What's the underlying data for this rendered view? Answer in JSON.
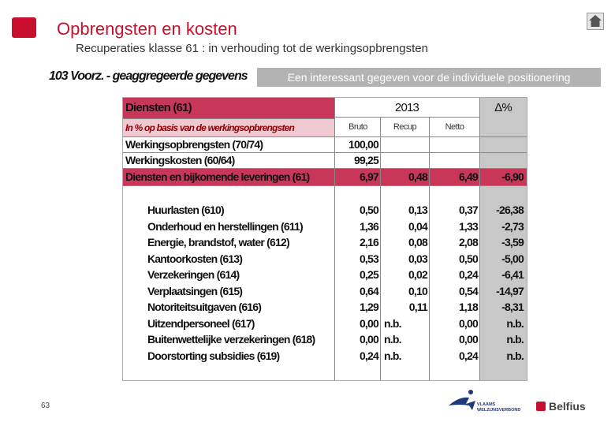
{
  "header": {
    "title": "Opbrengsten en kosten",
    "subtitle": "Recuperaties klasse 61 : in verhouding tot de werkingsopbrengsten"
  },
  "section_label": "103 Voorz. - geaggregeerde gegevens",
  "banner": "Een interessant gegeven voor de individuele positionering",
  "table": {
    "title": "Diensten (61)",
    "year": "2013",
    "delta_header": "Δ%",
    "subheader": "In % op basis van de werkingsopbrengsten",
    "columns": [
      "Bruto",
      "Recup",
      "Netto"
    ],
    "top_rows": [
      {
        "label": "Werkingsopbrengsten (70/74)",
        "bruto": "100,00",
        "recup": "",
        "netto": "",
        "delta": ""
      },
      {
        "label": "Werkingskosten  (60/64)",
        "bruto": "99,25",
        "recup": "",
        "netto": "",
        "delta": ""
      },
      {
        "label": "Diensten en bijkomende leveringen (61)",
        "bruto": "6,97",
        "recup": "0,48",
        "netto": "6,49",
        "delta": "-6,90"
      }
    ],
    "rows": [
      {
        "label": "Huurlasten (610)",
        "bruto": "0,50",
        "recup": "0,13",
        "netto": "0,37",
        "delta": "-26,38"
      },
      {
        "label": "Onderhoud en herstellingen (611)",
        "bruto": "1,36",
        "recup": "0,04",
        "netto": "1,33",
        "delta": "-2,73"
      },
      {
        "label": "Energie, brandstof, water (612)",
        "bruto": "2,16",
        "recup": "0,08",
        "netto": "2,08",
        "delta": "-3,59"
      },
      {
        "label": "Kantoorkosten (613)",
        "bruto": "0,53",
        "recup": "0,03",
        "netto": "0,50",
        "delta": "-5,00"
      },
      {
        "label": "Verzekeringen (614)",
        "bruto": "0,25",
        "recup": "0,02",
        "netto": "0,24",
        "delta": "-6,41"
      },
      {
        "label": "Verplaatsingen (615)",
        "bruto": "0,64",
        "recup": "0,10",
        "netto": "0,54",
        "delta": "-14,97"
      },
      {
        "label": "Notoriteitsuitgaven (616)",
        "bruto": "1,29",
        "recup": "0,11",
        "netto": "1,18",
        "delta": "-8,31"
      },
      {
        "label": "Uitzendpersoneel (617)",
        "bruto": "0,00",
        "recup": "n.b.",
        "netto": "0,00",
        "delta": "n.b."
      },
      {
        "label": "Buitenwettelijke verzekeringen (618)",
        "bruto": "0,00",
        "recup": "n.b.",
        "netto": "0,00",
        "delta": "n.b."
      },
      {
        "label": "Doorstorting subsidies (619)",
        "bruto": "0,24",
        "recup": "n.b.",
        "netto": "0,24",
        "delta": "n.b."
      }
    ]
  },
  "footer": {
    "page_number": "63",
    "logo_vlaams_line1": "VLAAMS",
    "logo_vlaams_line2": "WELZIJNSVERBOND",
    "logo_belfius": "Belfius"
  },
  "colors": {
    "accent": "#c8102e",
    "banner": "#b3b3b3",
    "delta_column": "#c8c8c8"
  }
}
